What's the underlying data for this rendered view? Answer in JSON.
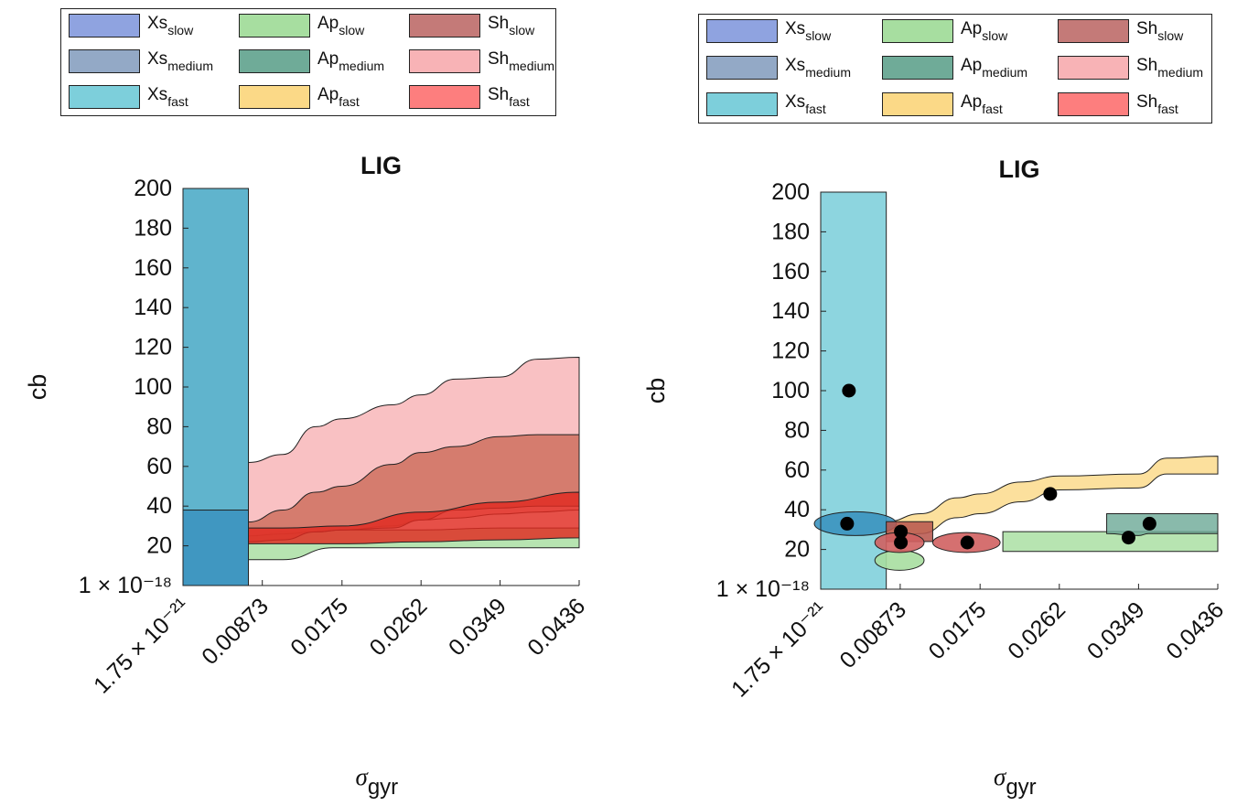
{
  "legend": [
    {
      "base": "Xs",
      "sub": "slow",
      "color": "#8fa3e0"
    },
    {
      "base": "Ap",
      "sub": "slow",
      "color": "#a7dea0"
    },
    {
      "base": "Sh",
      "sub": "slow",
      "color": "#c47a78"
    },
    {
      "base": "Xs",
      "sub": "medium",
      "color": "#93a9c6"
    },
    {
      "base": "Ap",
      "sub": "medium",
      "color": "#6fab98"
    },
    {
      "base": "Sh",
      "sub": "medium",
      "color": "#f8b3b6"
    },
    {
      "base": "Xs",
      "sub": "fast",
      "color": "#7dcfdb"
    },
    {
      "base": "Ap",
      "sub": "fast",
      "color": "#fbd987"
    },
    {
      "base": "Sh",
      "sub": "fast",
      "color": "#fd7e7e"
    }
  ],
  "chart_data": [
    {
      "type": "area",
      "title": "LIG",
      "xlabel_base": "σ",
      "xlabel_sub": "gyr",
      "ylabel": "cb",
      "xlim": [
        0,
        0.0436
      ],
      "ylim": [
        1e-18,
        200
      ],
      "x_ticks": [
        0,
        0.00873,
        0.0175,
        0.0262,
        0.0349,
        0.0436
      ],
      "x_tick_labels": [
        "1.75 × 10⁻²¹",
        "0.00873",
        "0.0175",
        "0.0262",
        "0.0349",
        "0.0436"
      ],
      "y_ticks": [
        1e-18,
        20,
        40,
        60,
        80,
        100,
        120,
        140,
        160,
        180,
        200
      ],
      "y_tick_labels": [
        "1 × 10⁻¹⁸",
        "20",
        "40",
        "60",
        "80",
        "100",
        "120",
        "140",
        "160",
        "180",
        "200"
      ],
      "series": [
        {
          "name": "Xs_fast",
          "color": "#4aaac6",
          "kind": "rect",
          "x": [
            0,
            0.0072
          ],
          "y_low": [
            0
          ],
          "y_high": [
            200
          ]
        },
        {
          "name": "Xs_medium",
          "color": "#3b93bf",
          "kind": "rect",
          "x": [
            0,
            0.0072
          ],
          "y_low": [
            0
          ],
          "y_high": [
            38
          ]
        },
        {
          "name": "Ap_slow",
          "color": "#a7dea0",
          "x": [
            0.0072,
            0.011,
            0.0165,
            0.0262,
            0.0349,
            0.0436
          ],
          "y_low": [
            13,
            13,
            19,
            19,
            19,
            19
          ],
          "y_high": [
            25,
            27,
            28,
            28,
            29,
            29
          ]
        },
        {
          "name": "Sh_medium",
          "color": "#f8b3b6",
          "x": [
            0.0072,
            0.011,
            0.0146,
            0.0175,
            0.023,
            0.0262,
            0.03,
            0.0349,
            0.039,
            0.0436
          ],
          "y_low": [
            25,
            26,
            27,
            28,
            30,
            33,
            34,
            36,
            37,
            38
          ],
          "y_high": [
            62,
            66,
            80,
            84,
            91,
            96,
            104,
            105,
            114,
            115
          ]
        },
        {
          "name": "Sh_slow",
          "color": "#cd6d5c",
          "x": [
            0.0072,
            0.011,
            0.0146,
            0.0175,
            0.023,
            0.0262,
            0.03,
            0.0349,
            0.039,
            0.0436
          ],
          "y_low": [
            22,
            23,
            27,
            28,
            29,
            33,
            38,
            39,
            40,
            40
          ],
          "y_high": [
            32,
            38,
            47,
            50,
            61,
            67,
            70,
            75,
            76,
            76
          ]
        },
        {
          "name": "Sh_fast",
          "color": "#e02a20",
          "x": [
            0.0072,
            0.011,
            0.0175,
            0.0262,
            0.0349,
            0.0436
          ],
          "y_low": [
            21,
            21,
            21,
            22,
            23,
            24
          ],
          "y_high": [
            29,
            29,
            30,
            37,
            42,
            47
          ]
        }
      ]
    },
    {
      "type": "area",
      "title": "LIG",
      "xlabel_base": "σ",
      "xlabel_sub": "gyr",
      "ylabel": "cb",
      "xlim": [
        0,
        0.0436
      ],
      "ylim": [
        1e-18,
        200
      ],
      "x_ticks": [
        0,
        0.00873,
        0.0175,
        0.0262,
        0.0349,
        0.0436
      ],
      "x_tick_labels": [
        "1.75 × 10⁻²¹",
        "0.00873",
        "0.0175",
        "0.0262",
        "0.0349",
        "0.0436"
      ],
      "y_ticks": [
        1e-18,
        20,
        40,
        60,
        80,
        100,
        120,
        140,
        160,
        180,
        200
      ],
      "y_tick_labels": [
        "1 × 10⁻¹⁸",
        "20",
        "40",
        "60",
        "80",
        "100",
        "120",
        "140",
        "160",
        "180",
        "200"
      ],
      "series": [
        {
          "name": "Xs_fast",
          "color": "#7dcfdb",
          "kind": "rect",
          "x": [
            0,
            0.0072
          ],
          "y_low": [
            0
          ],
          "y_high": [
            200
          ]
        },
        {
          "name": "Ap_fast",
          "color": "#fbd987",
          "x": [
            0.0072,
            0.011,
            0.015,
            0.0175,
            0.022,
            0.0262,
            0.0349,
            0.038,
            0.0436
          ],
          "y_low": [
            26,
            28,
            36,
            38,
            44,
            50,
            51,
            58,
            58
          ],
          "y_high": [
            34,
            38,
            46,
            48,
            54,
            57,
            58,
            66,
            67
          ]
        },
        {
          "name": "Ap_slow",
          "color": "#a7dea0",
          "kind": "ellipse",
          "cx": 0.00865,
          "rx": 0.0027,
          "cy": 14.5,
          "ry": 5
        },
        {
          "name": "Ap_slow",
          "color": "#a7dea0",
          "x": [
            0.02,
            0.033,
            0.0436
          ],
          "y_low": [
            19,
            19,
            19
          ],
          "y_high": [
            29,
            29,
            29
          ]
        },
        {
          "name": "Ap_medium",
          "color": "#6fab98",
          "x": [
            0.0314,
            0.0349,
            0.036,
            0.0436
          ],
          "y_low": [
            28,
            27,
            28,
            28
          ],
          "y_high": [
            38,
            38,
            38,
            38
          ]
        },
        {
          "name": "Xs_medium",
          "color": "#3b93bf",
          "kind": "ellipse",
          "cx": 0.0038,
          "rx": 0.0045,
          "cy": 33,
          "ry": 6
        },
        {
          "name": "Sh_slow",
          "color": "#b8584f",
          "kind": "rect",
          "x": [
            0.0072,
            0.0123
          ],
          "y_low": [
            24
          ],
          "y_high": [
            34
          ]
        },
        {
          "name": "Sh_fast",
          "color": "#d06060",
          "kind": "ellipse",
          "cx": 0.00865,
          "rx": 0.0027,
          "cy": 23.5,
          "ry": 5
        },
        {
          "name": "Sh_fast",
          "color": "#d06060",
          "kind": "ellipse",
          "cx": 0.016,
          "rx": 0.0037,
          "cy": 23.5,
          "ry": 5
        }
      ],
      "points": [
        {
          "x": 0.0031,
          "y": 100
        },
        {
          "x": 0.0029,
          "y": 33
        },
        {
          "x": 0.0088,
          "y": 29
        },
        {
          "x": 0.0088,
          "y": 23.5
        },
        {
          "x": 0.0161,
          "y": 23.5
        },
        {
          "x": 0.0252,
          "y": 48
        },
        {
          "x": 0.0338,
          "y": 26
        },
        {
          "x": 0.0361,
          "y": 33
        }
      ]
    }
  ]
}
